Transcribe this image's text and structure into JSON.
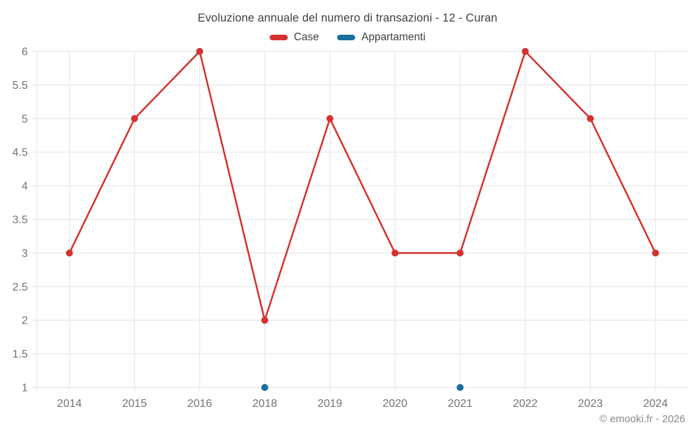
{
  "chart_data": {
    "type": "line",
    "title": "Evoluzione annuale del numero di transazioni - 12 - Curan",
    "categories": [
      "2014",
      "2015",
      "2016",
      "2018",
      "2019",
      "2020",
      "2021",
      "2022",
      "2023",
      "2024"
    ],
    "series": [
      {
        "name": "Case",
        "color": "#d5312e",
        "values": [
          3,
          5,
          6,
          2,
          5,
          3,
          3,
          6,
          5,
          3
        ]
      },
      {
        "name": "Appartamenti",
        "color": "#1a6f9e",
        "values": [
          null,
          null,
          null,
          1,
          null,
          null,
          1,
          null,
          null,
          null
        ]
      }
    ],
    "ylim": [
      1,
      6
    ],
    "yticks": [
      "1",
      "1.5",
      "2",
      "2.5",
      "3",
      "3.5",
      "4",
      "4.5",
      "5",
      "5.5",
      "6"
    ],
    "grid": true,
    "legend_position": "top",
    "xlabel": "",
    "ylabel": ""
  },
  "colors": {
    "grid": "#e9e9e9",
    "axis_text": "#737373",
    "title_text": "#414141",
    "footer_text": "#898989"
  },
  "footer": {
    "text": "© emooki.fr - 2026"
  }
}
